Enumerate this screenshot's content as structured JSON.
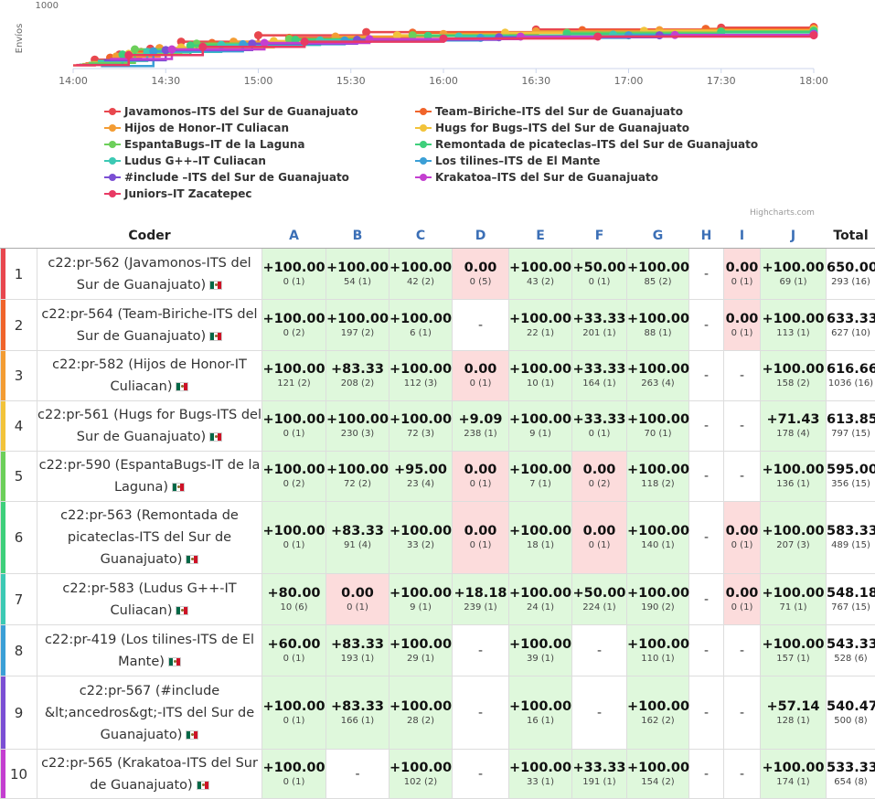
{
  "chart_data": {
    "type": "line",
    "ylabel": "Envíos",
    "ytick": "1000",
    "x_ticks": [
      "14:00",
      "14:30",
      "15:00",
      "15:30",
      "16:00",
      "16:30",
      "17:00",
      "17:30",
      "18:00"
    ],
    "x_range_minutes": [
      0,
      240
    ],
    "y_range": [
      0,
      1000
    ],
    "series": [
      {
        "name": "Javamonos–ITS del Sur de Guanajuato",
        "color": "#e8474e",
        "points": [
          [
            0,
            50
          ],
          [
            7,
            140
          ],
          [
            15,
            220
          ],
          [
            25,
            310
          ],
          [
            35,
            420
          ],
          [
            60,
            520
          ],
          [
            95,
            570
          ],
          [
            150,
            610
          ],
          [
            210,
            640
          ],
          [
            240,
            650
          ]
        ]
      },
      {
        "name": "Team–Biriche–ITS del Sur de Guanajuato",
        "color": "#f0642b",
        "points": [
          [
            4,
            80
          ],
          [
            12,
            170
          ],
          [
            22,
            260
          ],
          [
            45,
            400
          ],
          [
            70,
            480
          ],
          [
            110,
            560
          ],
          [
            165,
            600
          ],
          [
            205,
            620
          ],
          [
            240,
            633
          ]
        ]
      },
      {
        "name": "Hijos de Honor–IT Culiacan",
        "color": "#f39c33",
        "points": [
          [
            3,
            70
          ],
          [
            14,
            190
          ],
          [
            28,
            320
          ],
          [
            52,
            420
          ],
          [
            85,
            500
          ],
          [
            120,
            540
          ],
          [
            150,
            580
          ],
          [
            190,
            600
          ],
          [
            240,
            617
          ]
        ]
      },
      {
        "name": "Hugs for Bugs–ITS del Sur de Guanajuato",
        "color": "#f2c33a",
        "points": [
          [
            6,
            100
          ],
          [
            18,
            230
          ],
          [
            35,
            330
          ],
          [
            65,
            430
          ],
          [
            105,
            520
          ],
          [
            140,
            560
          ],
          [
            185,
            590
          ],
          [
            240,
            614
          ]
        ]
      },
      {
        "name": "EspantaBugs–IT de la Laguna",
        "color": "#6ccf5a",
        "points": [
          [
            5,
            90
          ],
          [
            20,
            300
          ],
          [
            40,
            390
          ],
          [
            70,
            460
          ],
          [
            110,
            520
          ],
          [
            160,
            560
          ],
          [
            210,
            580
          ],
          [
            240,
            595
          ]
        ]
      },
      {
        "name": "Remontada de picateclas–ITS del Sur de Guanajuato",
        "color": "#3ecf7b",
        "points": [
          [
            2,
            60
          ],
          [
            16,
            220
          ],
          [
            38,
            360
          ],
          [
            72,
            450
          ],
          [
            115,
            510
          ],
          [
            160,
            540
          ],
          [
            210,
            570
          ],
          [
            240,
            583
          ]
        ]
      },
      {
        "name": "Ludus G++–IT Culiacan",
        "color": "#3cc9b4",
        "points": [
          [
            8,
            120
          ],
          [
            24,
            260
          ],
          [
            48,
            370
          ],
          [
            80,
            440
          ],
          [
            125,
            500
          ],
          [
            175,
            530
          ],
          [
            240,
            548
          ]
        ]
      },
      {
        "name": "Los tilines–ITS de El Mante",
        "color": "#3b9fd6",
        "points": [
          [
            9,
            40
          ],
          [
            26,
            270
          ],
          [
            55,
            380
          ],
          [
            88,
            440
          ],
          [
            132,
            480
          ],
          [
            180,
            520
          ],
          [
            240,
            543
          ]
        ]
      },
      {
        "name": "#include –ITS del Sur de Guanajuato",
        "color": "#7b4fd4",
        "points": [
          [
            10,
            130
          ],
          [
            30,
            290
          ],
          [
            58,
            390
          ],
          [
            92,
            450
          ],
          [
            138,
            490
          ],
          [
            190,
            520
          ],
          [
            240,
            540
          ]
        ]
      },
      {
        "name": "Krakatoa–ITS del Sur de Guanajuato",
        "color": "#c43fd0",
        "points": [
          [
            12,
            150
          ],
          [
            32,
            300
          ],
          [
            62,
            400
          ],
          [
            96,
            460
          ],
          [
            145,
            500
          ],
          [
            195,
            525
          ],
          [
            240,
            533
          ]
        ]
      },
      {
        "name": "Juniors–IT Zacatepec",
        "color": "#e83a64",
        "points": [
          [
            1,
            55
          ],
          [
            18,
            210
          ],
          [
            42,
            340
          ],
          [
            75,
            420
          ],
          [
            120,
            470
          ],
          [
            170,
            500
          ],
          [
            240,
            520
          ]
        ]
      }
    ]
  },
  "table": {
    "headers": {
      "coder": "Coder",
      "total": "Total"
    },
    "problems": [
      "A",
      "B",
      "C",
      "D",
      "E",
      "F",
      "G",
      "H",
      "I",
      "J"
    ],
    "rows": [
      {
        "rank": "1",
        "bar": "#e8474e",
        "coder": "c22:pr-562 (Javamonos-ITS del Sur de Guanajuato)",
        "cells": [
          [
            "+100.00",
            "0 (1)",
            "ok"
          ],
          [
            "+100.00",
            "54 (1)",
            "ok"
          ],
          [
            "+100.00",
            "42 (2)",
            "ok"
          ],
          [
            "0.00",
            "0 (5)",
            "bad"
          ],
          [
            "+100.00",
            "43 (2)",
            "ok"
          ],
          [
            "+50.00",
            "0 (1)",
            "ok"
          ],
          [
            "+100.00",
            "85 (2)",
            "ok"
          ],
          [
            "-",
            "",
            ""
          ],
          [
            "0.00",
            "0 (1)",
            "bad"
          ],
          [
            "+100.00",
            "69 (1)",
            "ok"
          ]
        ],
        "total": "650.00",
        "total_time": "293 (16)"
      },
      {
        "rank": "2",
        "bar": "#f0642b",
        "coder": "c22:pr-564 (Team-Biriche-ITS del Sur de Guanajuato)",
        "cells": [
          [
            "+100.00",
            "0 (2)",
            "ok"
          ],
          [
            "+100.00",
            "197 (2)",
            "ok"
          ],
          [
            "+100.00",
            "6 (1)",
            "ok"
          ],
          [
            "-",
            "",
            ""
          ],
          [
            "+100.00",
            "22 (1)",
            "ok"
          ],
          [
            "+33.33",
            "201 (1)",
            "ok"
          ],
          [
            "+100.00",
            "88 (1)",
            "ok"
          ],
          [
            "-",
            "",
            ""
          ],
          [
            "0.00",
            "0 (1)",
            "bad"
          ],
          [
            "+100.00",
            "113 (1)",
            "ok"
          ]
        ],
        "total": "633.33",
        "total_time": "627 (10)"
      },
      {
        "rank": "3",
        "bar": "#f39c33",
        "coder": "c22:pr-582 (Hijos de Honor-IT Culiacan)",
        "cells": [
          [
            "+100.00",
            "121 (2)",
            "ok"
          ],
          [
            "+83.33",
            "208 (2)",
            "ok"
          ],
          [
            "+100.00",
            "112 (3)",
            "ok"
          ],
          [
            "0.00",
            "0 (1)",
            "bad"
          ],
          [
            "+100.00",
            "10 (1)",
            "ok"
          ],
          [
            "+33.33",
            "164 (1)",
            "ok"
          ],
          [
            "+100.00",
            "263 (4)",
            "ok"
          ],
          [
            "-",
            "",
            ""
          ],
          [
            "-",
            "",
            ""
          ],
          [
            "+100.00",
            "158 (2)",
            "ok"
          ]
        ],
        "total": "616.66",
        "total_time": "1036 (16)"
      },
      {
        "rank": "4",
        "bar": "#f2c33a",
        "coder": "c22:pr-561 (Hugs for Bugs-ITS del Sur de Guanajuato)",
        "cells": [
          [
            "+100.00",
            "0 (1)",
            "ok"
          ],
          [
            "+100.00",
            "230 (3)",
            "ok"
          ],
          [
            "+100.00",
            "72 (3)",
            "ok"
          ],
          [
            "+9.09",
            "238 (1)",
            "ok"
          ],
          [
            "+100.00",
            "9 (1)",
            "ok"
          ],
          [
            "+33.33",
            "0 (1)",
            "ok"
          ],
          [
            "+100.00",
            "70 (1)",
            "ok"
          ],
          [
            "-",
            "",
            ""
          ],
          [
            "-",
            "",
            ""
          ],
          [
            "+71.43",
            "178 (4)",
            "ok"
          ]
        ],
        "total": "613.85",
        "total_time": "797 (15)"
      },
      {
        "rank": "5",
        "bar": "#6ccf5a",
        "coder": "c22:pr-590 (EspantaBugs-IT de la Laguna)",
        "cells": [
          [
            "+100.00",
            "0 (2)",
            "ok"
          ],
          [
            "+100.00",
            "72 (2)",
            "ok"
          ],
          [
            "+95.00",
            "23 (4)",
            "ok"
          ],
          [
            "0.00",
            "0 (1)",
            "bad"
          ],
          [
            "+100.00",
            "7 (1)",
            "ok"
          ],
          [
            "0.00",
            "0 (2)",
            "bad"
          ],
          [
            "+100.00",
            "118 (2)",
            "ok"
          ],
          [
            "-",
            "",
            ""
          ],
          [
            "-",
            "",
            ""
          ],
          [
            "+100.00",
            "136 (1)",
            "ok"
          ]
        ],
        "total": "595.00",
        "total_time": "356 (15)"
      },
      {
        "rank": "6",
        "bar": "#3ecf7b",
        "coder": "c22:pr-563 (Remontada de picateclas-ITS del Sur de Guanajuato)",
        "cells": [
          [
            "+100.00",
            "0 (1)",
            "ok"
          ],
          [
            "+83.33",
            "91 (4)",
            "ok"
          ],
          [
            "+100.00",
            "33 (2)",
            "ok"
          ],
          [
            "0.00",
            "0 (1)",
            "bad"
          ],
          [
            "+100.00",
            "18 (1)",
            "ok"
          ],
          [
            "0.00",
            "0 (1)",
            "bad"
          ],
          [
            "+100.00",
            "140 (1)",
            "ok"
          ],
          [
            "-",
            "",
            ""
          ],
          [
            "0.00",
            "0 (1)",
            "bad"
          ],
          [
            "+100.00",
            "207 (3)",
            "ok"
          ]
        ],
        "total": "583.33",
        "total_time": "489 (15)"
      },
      {
        "rank": "7",
        "bar": "#3cc9b4",
        "coder": "c22:pr-583 (Ludus G++-IT Culiacan)",
        "cells": [
          [
            "+80.00",
            "10 (6)",
            "ok"
          ],
          [
            "0.00",
            "0 (1)",
            "bad"
          ],
          [
            "+100.00",
            "9 (1)",
            "ok"
          ],
          [
            "+18.18",
            "239 (1)",
            "ok"
          ],
          [
            "+100.00",
            "24 (1)",
            "ok"
          ],
          [
            "+50.00",
            "224 (1)",
            "ok"
          ],
          [
            "+100.00",
            "190 (2)",
            "ok"
          ],
          [
            "-",
            "",
            ""
          ],
          [
            "0.00",
            "0 (1)",
            "bad"
          ],
          [
            "+100.00",
            "71 (1)",
            "ok"
          ]
        ],
        "total": "548.18",
        "total_time": "767 (15)"
      },
      {
        "rank": "8",
        "bar": "#3b9fd6",
        "coder": "c22:pr-419 (Los tilines-ITS de El Mante)",
        "cells": [
          [
            "+60.00",
            "0 (1)",
            "ok"
          ],
          [
            "+83.33",
            "193 (1)",
            "ok"
          ],
          [
            "+100.00",
            "29 (1)",
            "ok"
          ],
          [
            "-",
            "",
            ""
          ],
          [
            "+100.00",
            "39 (1)",
            "ok"
          ],
          [
            "-",
            "",
            ""
          ],
          [
            "+100.00",
            "110 (1)",
            "ok"
          ],
          [
            "-",
            "",
            ""
          ],
          [
            "-",
            "",
            ""
          ],
          [
            "+100.00",
            "157 (1)",
            "ok"
          ]
        ],
        "total": "543.33",
        "total_time": "528 (6)"
      },
      {
        "rank": "9",
        "bar": "#7b4fd4",
        "coder": "c22:pr-567 (#include &lt;ancedros&gt;-ITS del Sur de Guanajuato)",
        "cells": [
          [
            "+100.00",
            "0 (1)",
            "ok"
          ],
          [
            "+83.33",
            "166 (1)",
            "ok"
          ],
          [
            "+100.00",
            "28 (2)",
            "ok"
          ],
          [
            "-",
            "",
            ""
          ],
          [
            "+100.00",
            "16 (1)",
            "ok"
          ],
          [
            "-",
            "",
            ""
          ],
          [
            "+100.00",
            "162 (2)",
            "ok"
          ],
          [
            "-",
            "",
            ""
          ],
          [
            "-",
            "",
            ""
          ],
          [
            "+57.14",
            "128 (1)",
            "ok"
          ]
        ],
        "total": "540.47",
        "total_time": "500 (8)"
      },
      {
        "rank": "10",
        "bar": "#c43fd0",
        "coder": "c22:pr-565 (Krakatoa-ITS del Sur de Guanajuato)",
        "cells": [
          [
            "+100.00",
            "0 (1)",
            "ok"
          ],
          [
            "-",
            "",
            ""
          ],
          [
            "+100.00",
            "102 (2)",
            "ok"
          ],
          [
            "-",
            "",
            ""
          ],
          [
            "+100.00",
            "33 (1)",
            "ok"
          ],
          [
            "+33.33",
            "191 (1)",
            "ok"
          ],
          [
            "+100.00",
            "154 (2)",
            "ok"
          ],
          [
            "-",
            "",
            ""
          ],
          [
            "-",
            "",
            ""
          ],
          [
            "+100.00",
            "174 (1)",
            "ok"
          ]
        ],
        "total": "533.33",
        "total_time": "654 (8)"
      }
    ]
  },
  "credits": "Highcharts.com"
}
